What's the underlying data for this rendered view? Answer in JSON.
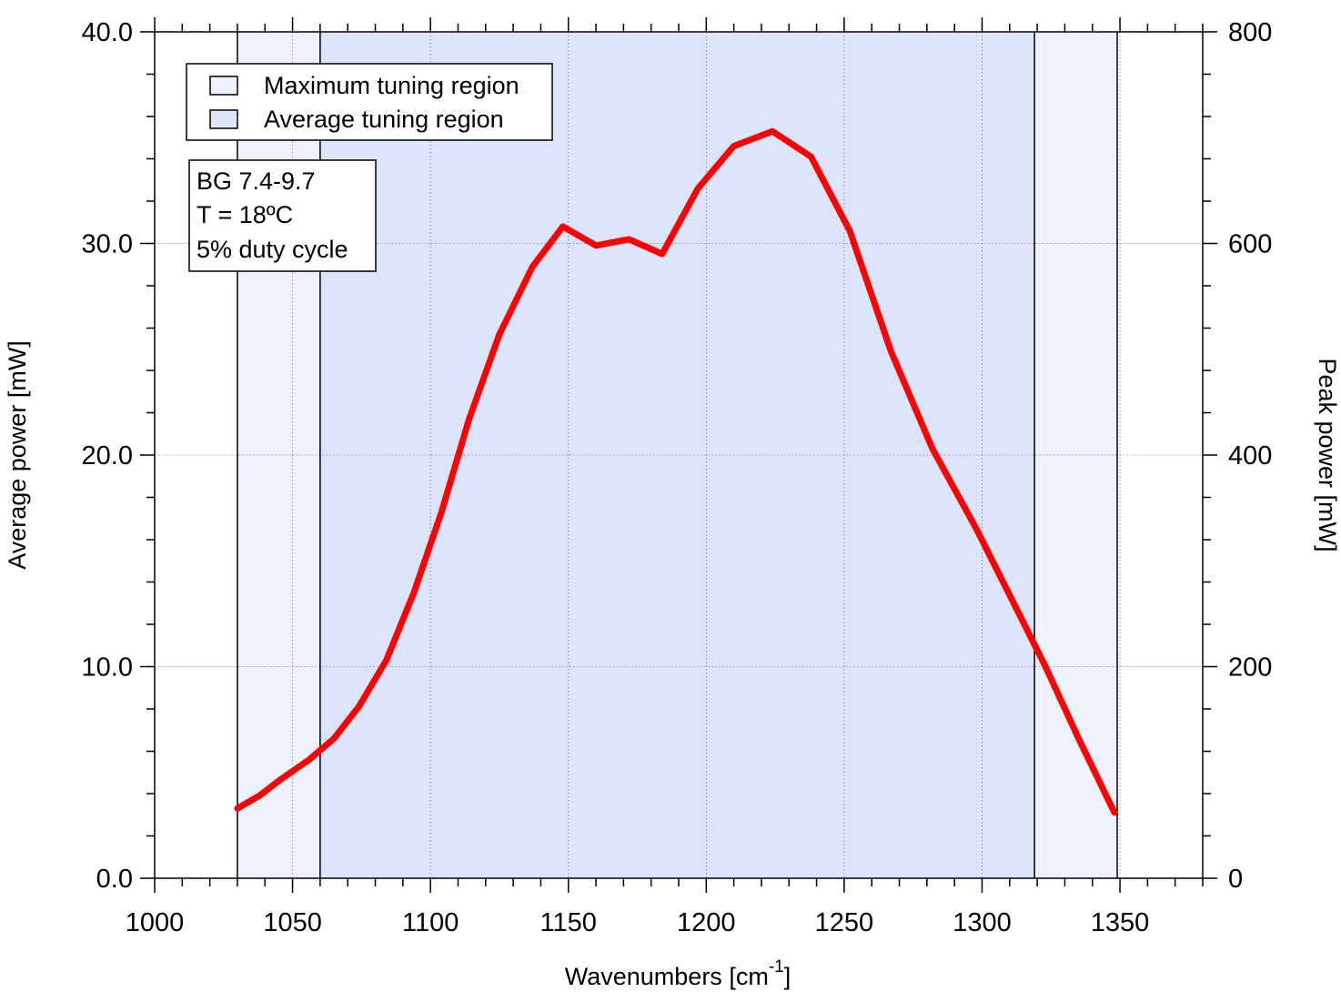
{
  "chart_data": {
    "type": "line",
    "xlabel": "Wavenumbers [cm",
    "xlabel_sup": "-1",
    "xlabel_close": "]",
    "ylabel": "Average power [mW]",
    "y2label": "Peak power [mW]",
    "xlim": [
      1000,
      1380
    ],
    "ylim": [
      0,
      40
    ],
    "y2lim": [
      0,
      800
    ],
    "grid": true,
    "x_ticks": [
      1000,
      1050,
      1100,
      1150,
      1200,
      1250,
      1300,
      1350
    ],
    "x_tick_labels": [
      "1000",
      "1050",
      "1100",
      "1150",
      "1200",
      "1250",
      "1300",
      "1350"
    ],
    "y_ticks": [
      0,
      10,
      20,
      30,
      40
    ],
    "y_tick_labels": [
      "0.0",
      "10.0",
      "20.0",
      "30.0",
      "40.0"
    ],
    "y2_ticks": [
      0,
      200,
      400,
      600,
      800
    ],
    "y2_tick_labels": [
      "0",
      "200",
      "400",
      "600",
      "800"
    ],
    "regions": [
      {
        "name": "Maximum tuning region",
        "x": [
          1030,
          1349
        ],
        "color": "#eef2fd"
      },
      {
        "name": "Average tuning region",
        "x": [
          1060,
          1319
        ],
        "color": "#dde5fb"
      }
    ],
    "legend": {
      "placement": "top-left",
      "entries": [
        "Maximum tuning region",
        "Average tuning region"
      ]
    },
    "annotation": {
      "lines": [
        "BG 7.4-9.7",
        "T = 18ºC",
        "5% duty cycle"
      ]
    },
    "series": [
      {
        "color": "#ff0000",
        "x": [
          1030,
          1038,
          1046,
          1056,
          1065,
          1074,
          1084,
          1094,
          1104,
          1114,
          1125,
          1137,
          1148,
          1160,
          1172,
          1184,
          1197,
          1210,
          1224,
          1238,
          1252,
          1267,
          1282,
          1298,
          1313,
          1323,
          1335,
          1348
        ],
        "y": [
          3.3,
          3.9,
          4.7,
          5.6,
          6.6,
          8.1,
          10.3,
          13.5,
          17.3,
          21.7,
          25.7,
          28.9,
          30.8,
          29.9,
          30.2,
          29.5,
          32.6,
          34.6,
          35.3,
          34.1,
          30.6,
          24.9,
          20.3,
          16.5,
          12.6,
          10.0,
          6.6,
          3.1
        ]
      }
    ]
  }
}
